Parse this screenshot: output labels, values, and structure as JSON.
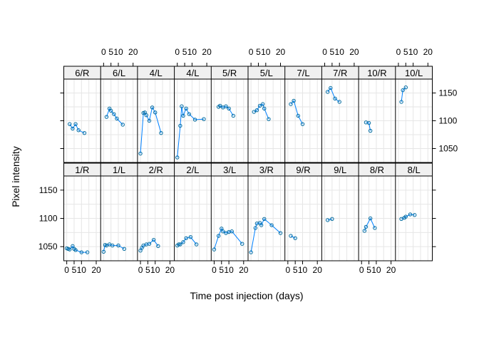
{
  "chart_data": {
    "type": "line",
    "xlabel": "Time post injection (days)",
    "ylabel": "Pixel intensity",
    "xlim": [
      -2,
      23
    ],
    "ylim": [
      1025,
      1175
    ],
    "x_ticks": [
      0,
      5,
      10,
      20
    ],
    "y_ticks": [
      1050,
      1100,
      1150
    ],
    "grid": true,
    "line_color": "#0080ff",
    "point_color": "#006b9f",
    "strip_color": "#f0f0f0",
    "panels": [
      {
        "row": "top",
        "label": "6/R",
        "x": [
          2,
          4,
          6,
          8,
          12
        ],
        "y": [
          1094,
          1086,
          1094,
          1083,
          1078
        ]
      },
      {
        "row": "top",
        "label": "6/L",
        "x": [
          2,
          4,
          5,
          7,
          9,
          13
        ],
        "y": [
          1107,
          1122,
          1118,
          1112,
          1104,
          1093
        ]
      },
      {
        "row": "top",
        "label": "4/L",
        "x": [
          0,
          2,
          3,
          4,
          6,
          8,
          10,
          14
        ],
        "y": [
          1041,
          1114,
          1115,
          1110,
          1100,
          1124,
          1115,
          1078
        ]
      },
      {
        "row": "top",
        "label": "4/L",
        "x": [
          0,
          2,
          3,
          4,
          6,
          8,
          12,
          18
        ],
        "y": [
          1034,
          1091,
          1126,
          1109,
          1122,
          1112,
          1102,
          1103
        ]
      },
      {
        "row": "top",
        "label": "5/R",
        "x": [
          3,
          4,
          6,
          8,
          10,
          13
        ],
        "y": [
          1125,
          1127,
          1124,
          1126,
          1122,
          1109
        ]
      },
      {
        "row": "top",
        "label": "5/L",
        "x": [
          2,
          4,
          6,
          8,
          9,
          12
        ],
        "y": [
          1116,
          1119,
          1127,
          1130,
          1122,
          1103
        ]
      },
      {
        "row": "top",
        "label": "7/L",
        "x": [
          2,
          4,
          7,
          10
        ],
        "y": [
          1130,
          1136,
          1109,
          1094
        ]
      },
      {
        "row": "top",
        "label": "7/R",
        "x": [
          2,
          4,
          7,
          10
        ],
        "y": [
          1152,
          1159,
          1140,
          1134
        ]
      },
      {
        "row": "top",
        "label": "10/R",
        "x": [
          3,
          5,
          6
        ],
        "y": [
          1097,
          1096,
          1082
        ]
      },
      {
        "row": "top",
        "label": "10/L",
        "x": [
          2,
          3,
          5
        ],
        "y": [
          1134,
          1155,
          1160
        ]
      },
      {
        "row": "bottom",
        "label": "1/R",
        "x": [
          0,
          1,
          2,
          4,
          5,
          6,
          10,
          14
        ],
        "y": [
          1047,
          1046,
          1045,
          1051,
          1046,
          1044,
          1040,
          1040
        ]
      },
      {
        "row": "bottom",
        "label": "1/L",
        "x": [
          0,
          1,
          2,
          4,
          6,
          10,
          14
        ],
        "y": [
          1041,
          1053,
          1052,
          1054,
          1052,
          1052,
          1046
        ]
      },
      {
        "row": "bottom",
        "label": "2/R",
        "x": [
          0,
          1,
          2,
          4,
          6,
          9,
          12
        ],
        "y": [
          1043,
          1048,
          1052,
          1054,
          1055,
          1062,
          1051
        ]
      },
      {
        "row": "bottom",
        "label": "2/L",
        "x": [
          0,
          1,
          2,
          4,
          6,
          9,
          13
        ],
        "y": [
          1052,
          1054,
          1054,
          1058,
          1065,
          1067,
          1054
        ]
      },
      {
        "row": "bottom",
        "label": "3/L",
        "x": [
          0,
          3,
          5,
          6,
          8,
          10,
          12,
          19
        ],
        "y": [
          1045,
          1069,
          1082,
          1077,
          1074,
          1076,
          1077,
          1055
        ]
      },
      {
        "row": "bottom",
        "label": "3/R",
        "x": [
          0,
          3,
          4,
          6,
          7,
          9,
          14,
          20
        ],
        "y": [
          1040,
          1083,
          1091,
          1092,
          1088,
          1099,
          1088,
          1074
        ]
      },
      {
        "row": "bottom",
        "label": "9/R",
        "x": [
          2,
          5
        ],
        "y": [
          1069,
          1065
        ]
      },
      {
        "row": "bottom",
        "label": "9/L",
        "x": [
          2,
          5
        ],
        "y": [
          1097,
          1099
        ]
      },
      {
        "row": "bottom",
        "label": "8/R",
        "x": [
          2,
          3,
          6,
          9
        ],
        "y": [
          1078,
          1085,
          1100,
          1083
        ]
      },
      {
        "row": "bottom",
        "label": "8/L",
        "x": [
          2,
          4,
          5,
          8,
          11
        ],
        "y": [
          1099,
          1101,
          1103,
          1107,
          1106
        ]
      }
    ]
  }
}
